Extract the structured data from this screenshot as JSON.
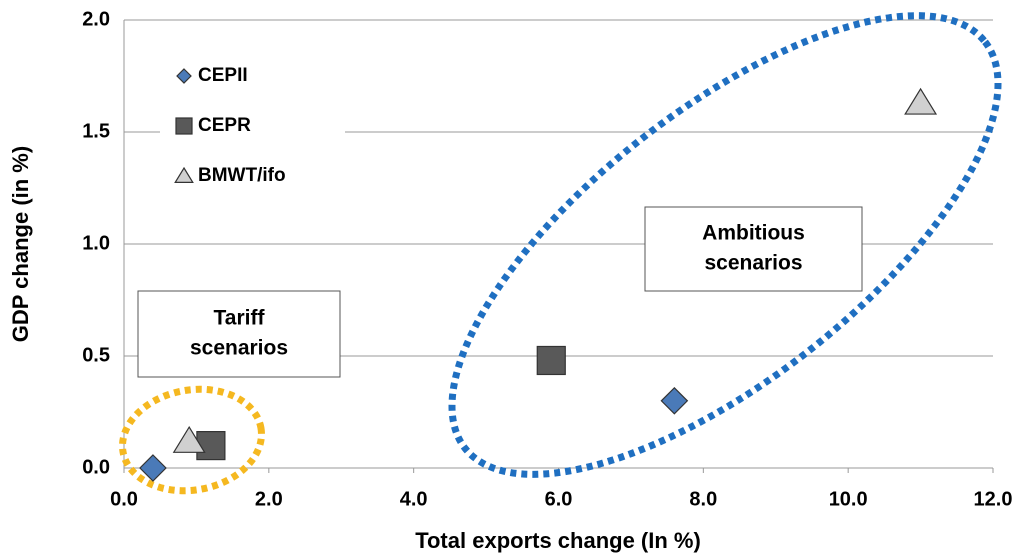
{
  "chart_data": {
    "type": "scatter",
    "xlabel": "Total exports change (In %)",
    "ylabel": "GDP change (in %)",
    "xlim": [
      0,
      12
    ],
    "ylim": [
      0,
      2
    ],
    "xticks": [
      {
        "value": 0,
        "label": "0.0"
      },
      {
        "value": 2,
        "label": "2.0"
      },
      {
        "value": 4,
        "label": "4.0"
      },
      {
        "value": 6,
        "label": "6.0"
      },
      {
        "value": 8,
        "label": "8.0"
      },
      {
        "value": 10,
        "label": "10.0"
      },
      {
        "value": 12,
        "label": "12.0"
      }
    ],
    "yticks": [
      {
        "value": 0,
        "label": "0.0"
      },
      {
        "value": 0.5,
        "label": "0.5"
      },
      {
        "value": 1,
        "label": "1.0"
      },
      {
        "value": 1.5,
        "label": "1.5"
      },
      {
        "value": 2,
        "label": "2.0"
      }
    ],
    "grid": true,
    "legend": "upper left",
    "series": [
      {
        "name": "CEPII",
        "marker": "diamond",
        "color": "#4a7ab8",
        "x": [
          0.4,
          7.6
        ],
        "values": [
          0,
          0.3
        ]
      },
      {
        "name": "CEPR",
        "marker": "square",
        "color": "#595959",
        "x": [
          1.2,
          5.9
        ],
        "values": [
          0.1,
          0.48
        ]
      },
      {
        "name": "BMWT/ifo",
        "marker": "triangle",
        "color": "#d0d0d0",
        "x": [
          0.9,
          11.0
        ],
        "values": [
          0.12,
          1.63
        ]
      }
    ],
    "annotations": [
      {
        "text": [
          "Tariff",
          "scenarios"
        ]
      },
      {
        "text": [
          "Ambitious",
          "scenarios"
        ]
      }
    ]
  }
}
